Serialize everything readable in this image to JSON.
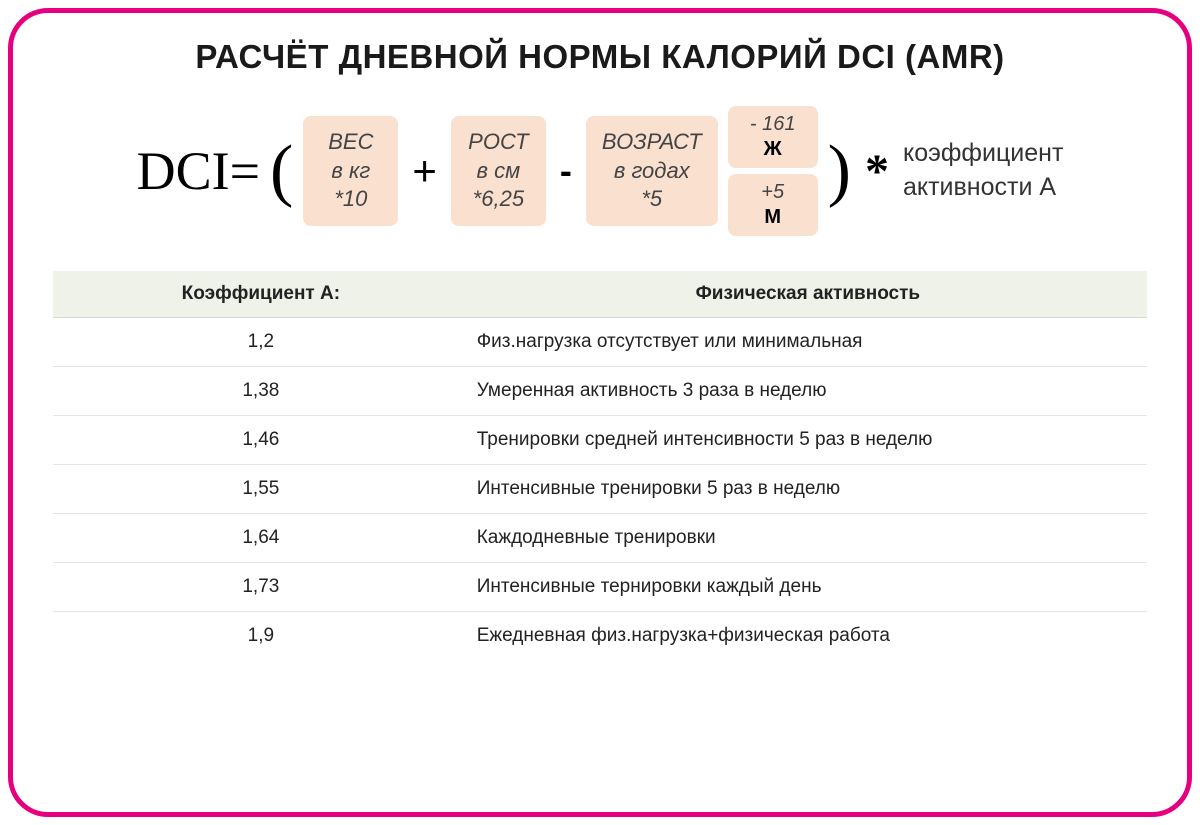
{
  "title": "РАСЧЁТ ДНЕВНОЙ НОРМЫ КАЛОРИЙ DCI (AMR)",
  "formula": {
    "lhs": "DCI=",
    "paren_open": "(",
    "paren_close": ")",
    "plus": "+",
    "minus": "-",
    "star": "*",
    "term_weight": {
      "line1": "ВЕС",
      "line2": "в кг",
      "line3": "*10"
    },
    "term_height": {
      "line1": "РОСТ",
      "line2": "в см",
      "line3": "*6,25"
    },
    "term_age": {
      "line1": "ВОЗРАСТ",
      "line2": "в годах",
      "line3": "*5"
    },
    "gender_f": {
      "val": "- 161",
      "sym": "Ж"
    },
    "gender_m": {
      "val": "+5",
      "sym": "М"
    },
    "coeff_text_line1": "коэффициент",
    "coeff_text_line2": "активности А"
  },
  "table": {
    "headers": {
      "coef": "Коэффициент А:",
      "activity": "Физическая активность"
    },
    "rows": [
      {
        "coef": "1,2",
        "activity": "Физ.нагрузка отсутствует или минимальная"
      },
      {
        "coef": "1,38",
        "activity": "Умеренная активность 3 раза в неделю"
      },
      {
        "coef": "1,46",
        "activity": "Тренировки средней интенсивности 5 раз  в неделю"
      },
      {
        "coef": "1,55",
        "activity": "Интенсивные тренировки 5 раз в неделю"
      },
      {
        "coef": "1,64",
        "activity": "Каждодневные тренировки"
      },
      {
        "coef": "1,73",
        "activity": "Интенсивные тернировки каждый день"
      },
      {
        "coef": "1,9",
        "activity": "Ежедневная физ.нагрузка+физическая работа"
      }
    ]
  },
  "colors": {
    "border": "#e6007e",
    "box_bg": "#f9e0cf",
    "table_header_bg": "#eef2e8",
    "row_border": "#e5e5e5"
  }
}
